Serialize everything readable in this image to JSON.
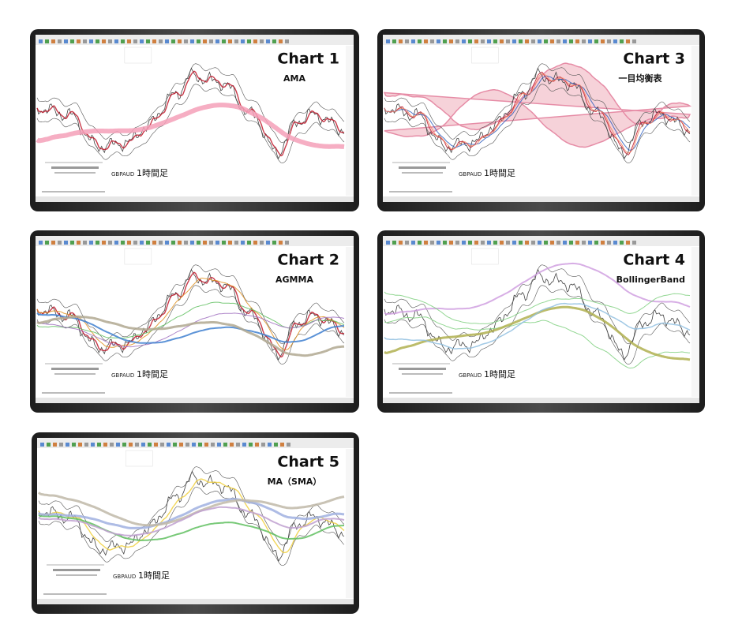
{
  "panels": [
    {
      "title": "Chart 1",
      "subtitle": "AMA",
      "symbol": "GBPAUD",
      "timeframe": "1時間足"
    },
    {
      "title": "Chart 3",
      "subtitle": "一目均衡表",
      "symbol": "GBPAUD",
      "timeframe": "1時間足"
    },
    {
      "title": "Chart 2",
      "subtitle": "AGMMA",
      "symbol": "GBPAUD",
      "timeframe": "1時間足"
    },
    {
      "title": "Chart 4",
      "subtitle": "BollingerBand",
      "symbol": "GBPAUD",
      "timeframe": "1時間足"
    },
    {
      "title": "Chart 5",
      "subtitle": "MA（SMA）",
      "symbol": "GBPAUD",
      "timeframe": "1時間足"
    }
  ]
}
